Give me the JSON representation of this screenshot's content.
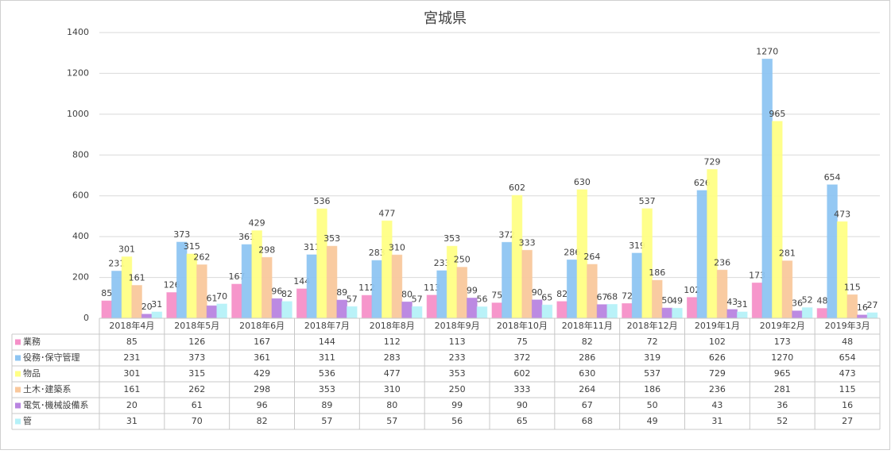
{
  "chart_data": {
    "type": "bar",
    "title": "宮城県",
    "categories": [
      "2018年4月",
      "2018年5月",
      "2018年6月",
      "2018年7月",
      "2018年8月",
      "2018年9月",
      "2018年10月",
      "2018年11月",
      "2018年12月",
      "2019年1月",
      "2019年2月",
      "2019年3月"
    ],
    "series": [
      {
        "name": "業務",
        "color": "#f590c8",
        "values": [
          85,
          126,
          167,
          144,
          112,
          113,
          75,
          82,
          72,
          102,
          173,
          48
        ]
      },
      {
        "name": "役務･保守管理",
        "color": "#8ec5f2",
        "values": [
          231,
          373,
          361,
          311,
          283,
          233,
          372,
          286,
          319,
          626,
          1270,
          654
        ]
      },
      {
        "name": "物品",
        "color": "#ffff85",
        "values": [
          301,
          315,
          429,
          536,
          477,
          353,
          602,
          630,
          537,
          729,
          965,
          473
        ]
      },
      {
        "name": "土木･建築系",
        "color": "#f9c89c",
        "values": [
          161,
          262,
          298,
          353,
          310,
          250,
          333,
          264,
          186,
          236,
          281,
          115
        ]
      },
      {
        "name": "電気･機械設備系",
        "color": "#b884e0",
        "values": [
          20,
          61,
          96,
          89,
          80,
          99,
          90,
          67,
          50,
          43,
          36,
          16
        ]
      },
      {
        "name": "管",
        "color": "#b5f1f8",
        "values": [
          31,
          70,
          82,
          57,
          57,
          56,
          65,
          68,
          49,
          31,
          52,
          27
        ]
      }
    ],
    "ylim": [
      0,
      1400
    ],
    "yticks": [
      0,
      200,
      400,
      600,
      800,
      1000,
      1200,
      1400
    ],
    "grid": true
  }
}
